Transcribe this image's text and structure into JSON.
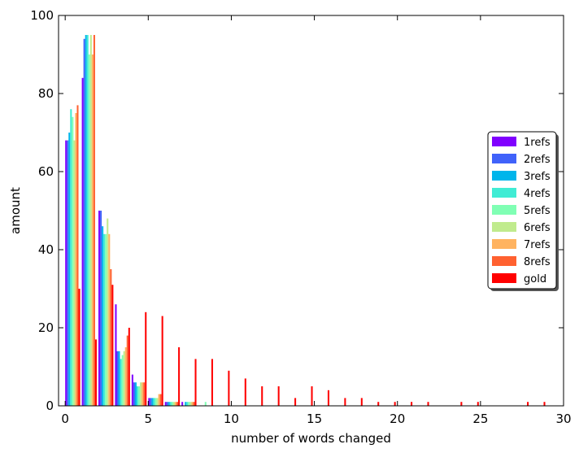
{
  "chart_data": {
    "type": "bar",
    "title": "",
    "xlabel": "number of words changed",
    "ylabel": "amount",
    "xlim": [
      -0.4,
      30
    ],
    "ylim": [
      0,
      100
    ],
    "xticks": [
      0,
      5,
      10,
      15,
      20,
      25,
      30
    ],
    "yticks": [
      0,
      20,
      40,
      60,
      80,
      100
    ],
    "grid": false,
    "legend_position": "center-right",
    "series": [
      {
        "name": "1refs",
        "color": "#8000ff",
        "points": [
          [
            0,
            68
          ],
          [
            1,
            84
          ],
          [
            2,
            50
          ],
          [
            3,
            26
          ],
          [
            4,
            8
          ],
          [
            5,
            2
          ],
          [
            6,
            1
          ],
          [
            7,
            1
          ],
          [
            8,
            0
          ]
        ]
      },
      {
        "name": "2refs",
        "color": "#4062fa",
        "points": [
          [
            0,
            68
          ],
          [
            1,
            94
          ],
          [
            2,
            50
          ],
          [
            3,
            14
          ],
          [
            4,
            6
          ],
          [
            5,
            2
          ],
          [
            6,
            1
          ],
          [
            7,
            0
          ]
        ]
      },
      {
        "name": "3refs",
        "color": "#00b5eb",
        "points": [
          [
            0,
            70
          ],
          [
            1,
            95
          ],
          [
            2,
            46
          ],
          [
            3,
            14
          ],
          [
            4,
            6
          ],
          [
            5,
            2
          ],
          [
            6,
            1
          ],
          [
            7,
            1
          ]
        ]
      },
      {
        "name": "4refs",
        "color": "#40ecd4",
        "points": [
          [
            0,
            76
          ],
          [
            1,
            95
          ],
          [
            2,
            44
          ],
          [
            3,
            12
          ],
          [
            4,
            5
          ],
          [
            5,
            2
          ],
          [
            6,
            1
          ],
          [
            7,
            1
          ]
        ]
      },
      {
        "name": "5refs",
        "color": "#80ffb4",
        "points": [
          [
            0,
            74
          ],
          [
            1,
            90
          ],
          [
            2,
            44
          ],
          [
            3,
            13
          ],
          [
            4,
            5
          ],
          [
            5,
            2
          ],
          [
            6,
            1
          ],
          [
            7,
            1
          ],
          [
            8,
            1
          ]
        ]
      },
      {
        "name": "6refs",
        "color": "#c0eb8d",
        "points": [
          [
            0,
            68
          ],
          [
            1,
            95
          ],
          [
            2,
            48
          ],
          [
            3,
            14
          ],
          [
            4,
            6
          ],
          [
            5,
            2
          ],
          [
            6,
            1
          ],
          [
            7,
            1
          ]
        ]
      },
      {
        "name": "7refs",
        "color": "#ffb360",
        "points": [
          [
            0,
            75
          ],
          [
            1,
            90
          ],
          [
            2,
            44
          ],
          [
            3,
            15
          ],
          [
            4,
            6
          ],
          [
            5,
            3
          ],
          [
            6,
            1
          ],
          [
            7,
            1
          ]
        ]
      },
      {
        "name": "8refs",
        "color": "#ff6130",
        "points": [
          [
            0,
            77
          ],
          [
            1,
            95
          ],
          [
            2,
            35
          ],
          [
            3,
            18
          ],
          [
            4,
            6
          ],
          [
            5,
            3
          ],
          [
            6,
            1
          ],
          [
            7,
            1
          ]
        ]
      },
      {
        "name": "gold",
        "color": "#ff0000",
        "points": [
          [
            0,
            30
          ],
          [
            1,
            17
          ],
          [
            2,
            31
          ],
          [
            3,
            20
          ],
          [
            4,
            24
          ],
          [
            5,
            23
          ],
          [
            6,
            15
          ],
          [
            7,
            12
          ],
          [
            8,
            12
          ],
          [
            9,
            9
          ],
          [
            10,
            7
          ],
          [
            11,
            5
          ],
          [
            12,
            5
          ],
          [
            13,
            2
          ],
          [
            14,
            5
          ],
          [
            15,
            4
          ],
          [
            16,
            2
          ],
          [
            17,
            2
          ],
          [
            18,
            1
          ],
          [
            19,
            1
          ],
          [
            20,
            1
          ],
          [
            21,
            1
          ],
          [
            23,
            1
          ],
          [
            24,
            1
          ],
          [
            27,
            1
          ],
          [
            28,
            1
          ]
        ]
      }
    ]
  }
}
